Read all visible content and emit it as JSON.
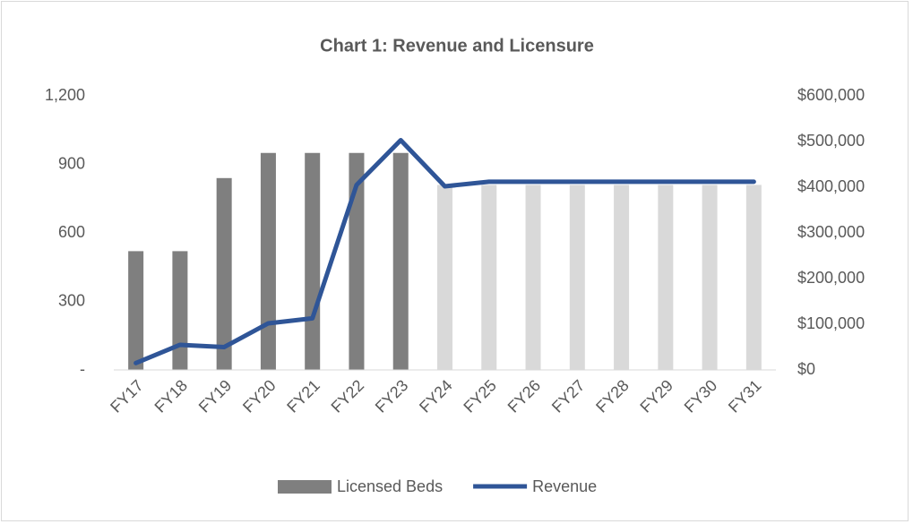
{
  "chart_data": {
    "type": "bar-line",
    "title": "Chart 1: Revenue and Licensure",
    "categories": [
      "FY17",
      "FY18",
      "FY19",
      "FY20",
      "FY21",
      "FY22",
      "FY23",
      "FY24",
      "FY25",
      "FY26",
      "FY27",
      "FY28",
      "FY29",
      "FY30",
      "FY31"
    ],
    "series": [
      {
        "name": "Licensed Beds",
        "type": "bar",
        "color": "#7f7f7f",
        "colors": [
          "#7f7f7f",
          "#7f7f7f",
          "#7f7f7f",
          "#7f7f7f",
          "#7f7f7f",
          "#7f7f7f",
          "#7f7f7f",
          "#d9d9d9",
          "#d9d9d9",
          "#d9d9d9",
          "#d9d9d9",
          "#d9d9d9",
          "#d9d9d9",
          "#d9d9d9",
          "#d9d9d9"
        ],
        "values": [
          520,
          520,
          840,
          950,
          950,
          950,
          950,
          810,
          810,
          810,
          810,
          810,
          810,
          810,
          810
        ]
      },
      {
        "name": "Revenue",
        "type": "line",
        "axis": "y2",
        "color": "#2f5597",
        "values": [
          15000,
          55000,
          50000,
          102000,
          113000,
          405000,
          503000,
          402000,
          412000,
          412000,
          412000,
          412000,
          412000,
          412000,
          412000
        ]
      }
    ],
    "ylim": [
      0,
      1200
    ],
    "yticks": [
      {
        "value": 0,
        "label": "-"
      },
      300,
      600,
      900,
      {
        "value": 1200,
        "label": "1,200"
      }
    ],
    "y2lim": [
      0,
      600000
    ],
    "y2ticks": [
      {
        "value": 0,
        "label": "$0"
      },
      {
        "value": 100000,
        "label": "$100,000"
      },
      {
        "value": 200000,
        "label": "$200,000"
      },
      {
        "value": 300000,
        "label": "$300,000"
      },
      {
        "value": 400000,
        "label": "$400,000"
      },
      {
        "value": 500000,
        "label": "$500,000"
      },
      {
        "value": 600000,
        "label": "$600,000"
      }
    ],
    "legend": "bottom"
  }
}
